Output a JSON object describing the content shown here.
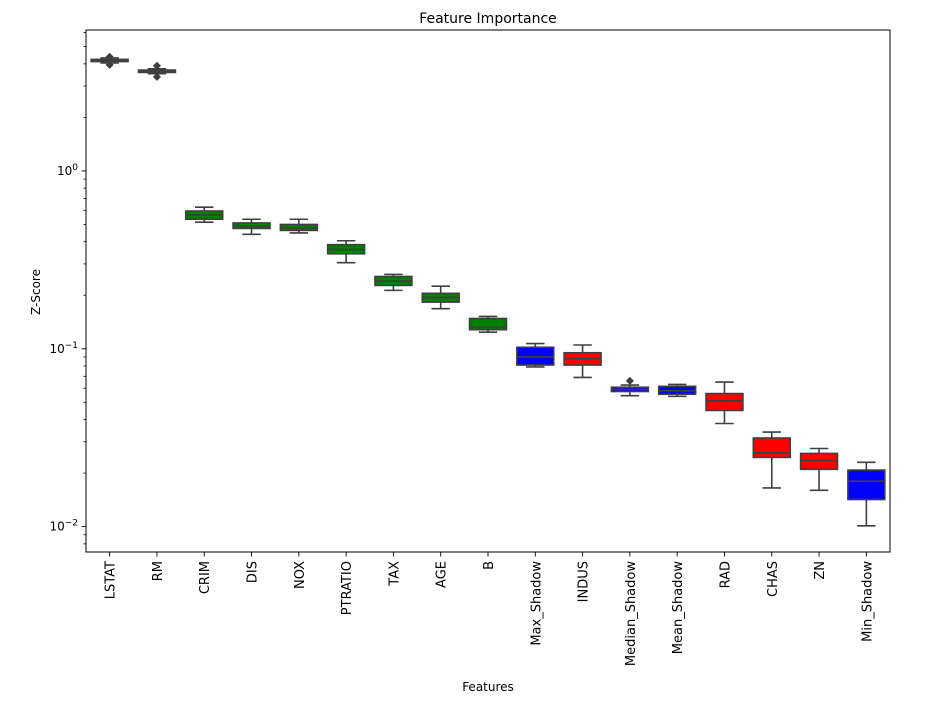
{
  "chart_data": {
    "type": "box",
    "title": "Feature Importance",
    "xlabel": "Features",
    "ylabel": "Z-Score",
    "yscale": "log",
    "ylim": [
      0.0072,
      6.2
    ],
    "yticks": [
      {
        "value": 1,
        "base": "10",
        "exp": "0"
      },
      {
        "value": 0.1,
        "base": "10",
        "exp": "−1"
      },
      {
        "value": 0.01,
        "base": "10",
        "exp": "−2"
      }
    ],
    "colors": {
      "green": "#008000",
      "blue": "#0000ff",
      "red": "#ff0000",
      "black": "#000000"
    },
    "boxes": [
      {
        "label": "LSTAT",
        "color": "green",
        "whislo": 4.05,
        "q1": 4.12,
        "med": 4.18,
        "q3": 4.24,
        "whishi": 4.32,
        "fliers": [
          3.95,
          4.38
        ]
      },
      {
        "label": "RM",
        "color": "green",
        "whislo": 3.52,
        "q1": 3.58,
        "med": 3.63,
        "q3": 3.69,
        "whishi": 3.75,
        "fliers": [
          3.38,
          3.9
        ]
      },
      {
        "label": "CRIM",
        "color": "green",
        "whislo": 0.515,
        "q1": 0.535,
        "med": 0.565,
        "q3": 0.595,
        "whishi": 0.625,
        "fliers": []
      },
      {
        "label": "DIS",
        "color": "green",
        "whislo": 0.44,
        "q1": 0.475,
        "med": 0.49,
        "q3": 0.51,
        "whishi": 0.535,
        "fliers": []
      },
      {
        "label": "NOX",
        "color": "green",
        "whislo": 0.448,
        "q1": 0.463,
        "med": 0.478,
        "q3": 0.5,
        "whishi": 0.535,
        "fliers": []
      },
      {
        "label": "PTRATIO",
        "color": "green",
        "whislo": 0.305,
        "q1": 0.342,
        "med": 0.362,
        "q3": 0.385,
        "whishi": 0.405,
        "fliers": []
      },
      {
        "label": "TAX",
        "color": "green",
        "whislo": 0.213,
        "q1": 0.227,
        "med": 0.24,
        "q3": 0.255,
        "whishi": 0.262,
        "fliers": []
      },
      {
        "label": "AGE",
        "color": "green",
        "whislo": 0.168,
        "q1": 0.183,
        "med": 0.194,
        "q3": 0.205,
        "whishi": 0.225,
        "fliers": []
      },
      {
        "label": "B",
        "color": "green",
        "whislo": 0.124,
        "q1": 0.128,
        "med": 0.132,
        "q3": 0.148,
        "whishi": 0.152,
        "fliers": []
      },
      {
        "label": "Max_Shadow",
        "color": "blue",
        "whislo": 0.079,
        "q1": 0.081,
        "med": 0.09,
        "q3": 0.102,
        "whishi": 0.107,
        "fliers": []
      },
      {
        "label": "INDUS",
        "color": "red",
        "whislo": 0.069,
        "q1": 0.081,
        "med": 0.088,
        "q3": 0.095,
        "whishi": 0.105,
        "fliers": []
      },
      {
        "label": "Median_Shadow",
        "color": "blue",
        "whislo": 0.0545,
        "q1": 0.0575,
        "med": 0.0592,
        "q3": 0.0608,
        "whishi": 0.0625,
        "fliers": [
          0.066
        ]
      },
      {
        "label": "Mean_Shadow",
        "color": "blue",
        "whislo": 0.054,
        "q1": 0.0555,
        "med": 0.058,
        "q3": 0.0615,
        "whishi": 0.063,
        "fliers": []
      },
      {
        "label": "RAD",
        "color": "red",
        "whislo": 0.038,
        "q1": 0.045,
        "med": 0.051,
        "q3": 0.056,
        "whishi": 0.065,
        "fliers": []
      },
      {
        "label": "CHAS",
        "color": "red",
        "whislo": 0.0165,
        "q1": 0.0245,
        "med": 0.026,
        "q3": 0.0315,
        "whishi": 0.034,
        "fliers": []
      },
      {
        "label": "ZN",
        "color": "red",
        "whislo": 0.016,
        "q1": 0.021,
        "med": 0.0235,
        "q3": 0.0258,
        "whishi": 0.0275,
        "fliers": []
      },
      {
        "label": "Min_Shadow",
        "color": "blue",
        "whislo": 0.0101,
        "q1": 0.0142,
        "med": 0.018,
        "q3": 0.0208,
        "whishi": 0.023,
        "fliers": []
      }
    ]
  }
}
